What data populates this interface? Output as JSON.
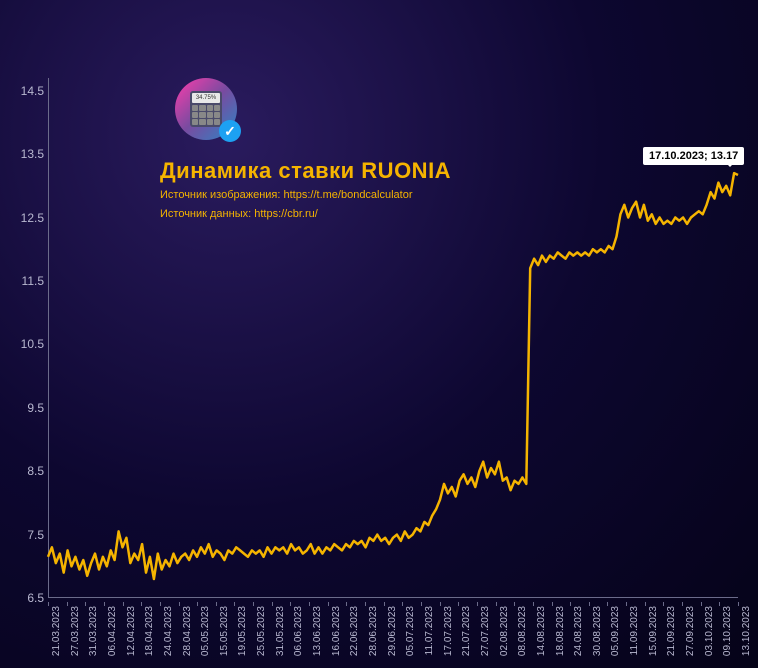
{
  "chart": {
    "type": "line",
    "title": "Динамика ставки RUONIA",
    "source_image": "Источник изображения: https://t.me/bondcalculator",
    "source_data": "Источник данных: https://cbr.ru/",
    "line_color": "#f5b400",
    "line_width": 2.5,
    "background": "radial-gradient #2a1b5e to #050318",
    "axis_color": "#6b6b8a",
    "tick_text_color": "#b8b8d0",
    "title_color": "#f5b400",
    "y": {
      "min": 6.5,
      "max": 14.7,
      "ticks": [
        6.5,
        7.5,
        8.5,
        9.5,
        10.5,
        11.5,
        12.5,
        13.5,
        14.5
      ]
    },
    "x_labels": [
      "21.03.2023",
      "27.03.2023",
      "31.03.2023",
      "06.04.2023",
      "12.04.2023",
      "18.04.2023",
      "24.04.2023",
      "28.04.2023",
      "05.05.2023",
      "15.05.2023",
      "19.05.2023",
      "25.05.2023",
      "31.05.2023",
      "06.06.2023",
      "13.06.2023",
      "16.06.2023",
      "22.06.2023",
      "28.06.2023",
      "29.06.2023",
      "05.07.2023",
      "11.07.2023",
      "17.07.2023",
      "21.07.2023",
      "27.07.2023",
      "02.08.2023",
      "08.08.2023",
      "14.08.2023",
      "18.08.2023",
      "24.08.2023",
      "30.08.2023",
      "05.09.2023",
      "11.09.2023",
      "15.09.2023",
      "21.09.2023",
      "27.09.2023",
      "03.10.2023",
      "09.10.2023",
      "13.10.2023"
    ],
    "series": [
      7.15,
      7.3,
      7.05,
      7.2,
      6.9,
      7.25,
      7.0,
      7.15,
      6.95,
      7.1,
      6.85,
      7.05,
      7.2,
      6.95,
      7.15,
      7.0,
      7.25,
      7.1,
      7.55,
      7.3,
      7.45,
      7.05,
      7.2,
      7.1,
      7.35,
      6.9,
      7.15,
      6.8,
      7.2,
      6.95,
      7.1,
      7.0,
      7.2,
      7.05,
      7.15,
      7.2,
      7.1,
      7.25,
      7.15,
      7.3,
      7.2,
      7.35,
      7.15,
      7.25,
      7.2,
      7.1,
      7.25,
      7.2,
      7.3,
      7.25,
      7.2,
      7.15,
      7.25,
      7.2,
      7.25,
      7.15,
      7.3,
      7.2,
      7.3,
      7.25,
      7.3,
      7.2,
      7.35,
      7.25,
      7.3,
      7.2,
      7.25,
      7.35,
      7.2,
      7.3,
      7.2,
      7.3,
      7.25,
      7.35,
      7.3,
      7.25,
      7.35,
      7.3,
      7.4,
      7.35,
      7.4,
      7.3,
      7.45,
      7.4,
      7.5,
      7.4,
      7.45,
      7.35,
      7.45,
      7.5,
      7.4,
      7.55,
      7.45,
      7.5,
      7.6,
      7.55,
      7.7,
      7.65,
      7.8,
      7.9,
      8.05,
      8.3,
      8.15,
      8.25,
      8.1,
      8.35,
      8.45,
      8.3,
      8.4,
      8.25,
      8.5,
      8.65,
      8.4,
      8.55,
      8.45,
      8.65,
      8.35,
      8.4,
      8.2,
      8.35,
      8.3,
      8.4,
      8.3,
      11.7,
      11.85,
      11.75,
      11.9,
      11.8,
      11.9,
      11.85,
      11.95,
      11.9,
      11.85,
      11.95,
      11.9,
      11.95,
      11.9,
      11.95,
      11.9,
      12.0,
      11.95,
      12.0,
      11.95,
      12.05,
      12.0,
      12.2,
      12.55,
      12.7,
      12.5,
      12.65,
      12.75,
      12.5,
      12.7,
      12.45,
      12.55,
      12.4,
      12.5,
      12.4,
      12.45,
      12.4,
      12.5,
      12.45,
      12.5,
      12.4,
      12.5,
      12.55,
      12.6,
      12.55,
      12.7,
      12.9,
      12.8,
      13.05,
      12.9,
      13.0,
      12.85,
      13.2,
      13.17
    ],
    "callout": {
      "text": "17.10.2023; 13.17",
      "x_index": 176,
      "y_value": 13.17
    },
    "logo": {
      "screen_text": "34.75%"
    }
  }
}
